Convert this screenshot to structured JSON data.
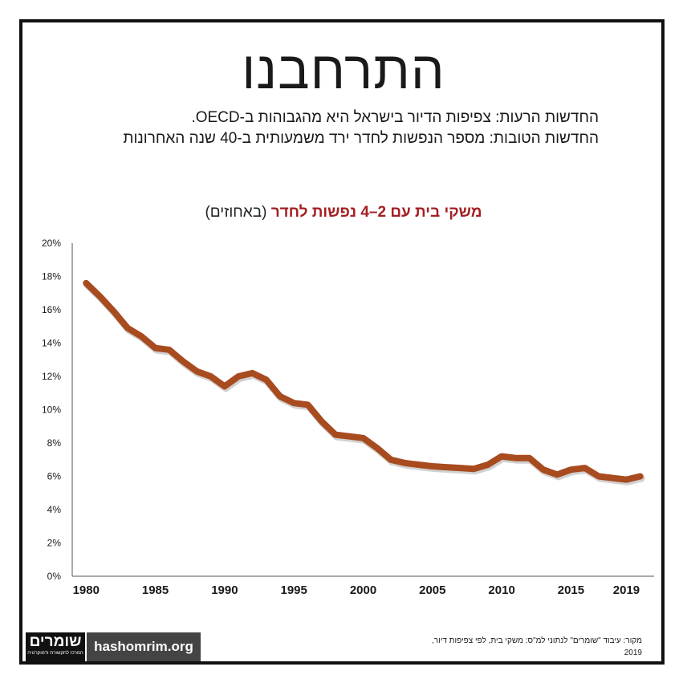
{
  "header": {
    "title": "התרחבנו",
    "subtitle_line1": "החדשות הרעות: צפיפות הדיור בישראל היא מהגבוהות ב-OECD.",
    "subtitle_line2": "החדשות הטובות: מספר הנפשות לחדר ירד משמעותית ב-40 שנה האחרונות"
  },
  "chart_data": {
    "type": "line",
    "title": "משקי בית עם 2–4 נפשות לחדר",
    "title_unit": "(באחוזים)",
    "x": [
      1980,
      1981,
      1982,
      1983,
      1984,
      1985,
      1986,
      1987,
      1988,
      1989,
      1990,
      1991,
      1992,
      1993,
      1994,
      1995,
      1996,
      1997,
      1998,
      1999,
      2000,
      2001,
      2002,
      2003,
      2004,
      2005,
      2006,
      2007,
      2008,
      2009,
      2010,
      2011,
      2012,
      2013,
      2014,
      2015,
      2016,
      2017,
      2018,
      2019,
      2020
    ],
    "series": [
      {
        "values": [
          17.6,
          16.8,
          15.9,
          14.9,
          14.4,
          13.7,
          13.6,
          12.9,
          12.3,
          12.0,
          11.4,
          12.0,
          12.2,
          11.8,
          10.8,
          10.4,
          10.3,
          9.3,
          8.5,
          8.4,
          8.3,
          7.7,
          7.0,
          6.8,
          6.7,
          6.6,
          6.55,
          6.5,
          6.45,
          6.7,
          7.2,
          7.1,
          7.1,
          6.4,
          6.1,
          6.4,
          6.5,
          6.0,
          5.9,
          5.8,
          6.0
        ]
      }
    ],
    "x_ticks": [
      "1980",
      "1985",
      "1990",
      "1995",
      "2000",
      "2005",
      "2010",
      "2015",
      "2019"
    ],
    "x_tick_values": [
      1980,
      1985,
      1990,
      1995,
      2000,
      2005,
      2010,
      2015,
      2019
    ],
    "y_ticks": [
      "0%",
      "2%",
      "4%",
      "6%",
      "8%",
      "10%",
      "12%",
      "14%",
      "16%",
      "18%",
      "20%"
    ],
    "y_tick_values": [
      0,
      2,
      4,
      6,
      8,
      10,
      12,
      14,
      16,
      18,
      20
    ],
    "xlim": [
      1979,
      2021
    ],
    "ylim": [
      0,
      20
    ],
    "grid": false,
    "line_color": "#a84b1f"
  },
  "footer": {
    "source_line1": "מקור: עיבוד \"שומרים\" לנתוני למ\"ס: משקי בית, לפי צפיפות דיור,",
    "source_line2": "2019",
    "logo_text": "שומרים",
    "logo_tagline": "המרכז לתקשורת ודמוקרטיה",
    "site": "hashomrim.org"
  }
}
